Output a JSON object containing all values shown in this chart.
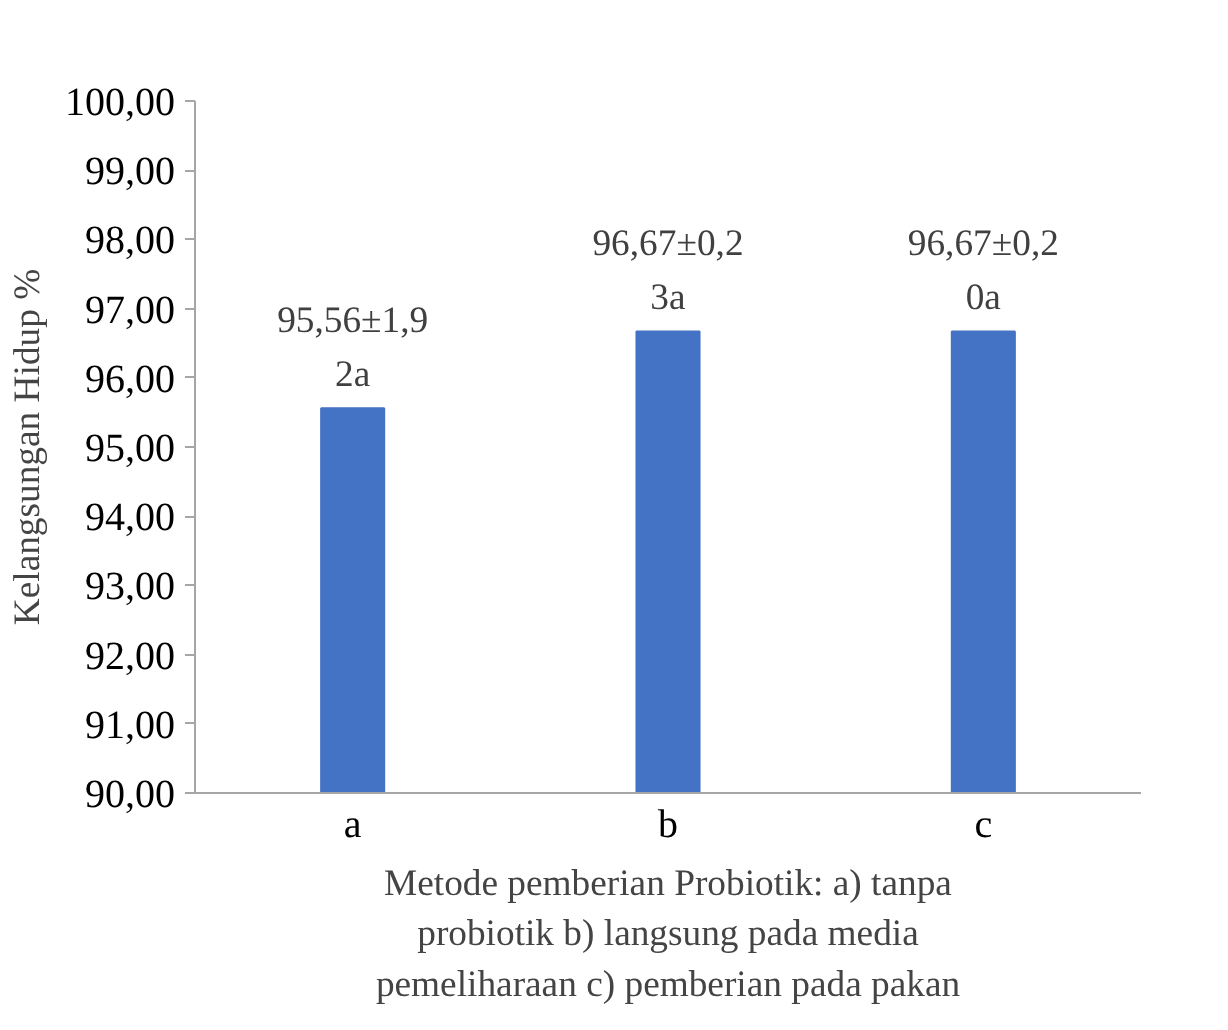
{
  "chart_data": {
    "type": "bar",
    "ylabel": "Kelangsungan Hidup %",
    "xlabel": "Metode pemberian Probiotik: a) tanpa\nprobiotik b) langsung pada media\npemeliharaan c) pemberian pada pakan",
    "categories": [
      "a",
      "b",
      "c"
    ],
    "values": [
      95.56,
      96.67,
      96.67
    ],
    "color": "#4472c4",
    "value_labels": [
      "95,56±1,9\n2a",
      "96,67±0,2\n3a",
      "96,67±0,2\n0a"
    ],
    "ylim": [
      90,
      100
    ],
    "yticks": [
      {
        "value": 90,
        "label": "90,00"
      },
      {
        "value": 91,
        "label": "91,00"
      },
      {
        "value": 92,
        "label": "92,00"
      },
      {
        "value": 93,
        "label": "93,00"
      },
      {
        "value": 94,
        "label": "94,00"
      },
      {
        "value": 95,
        "label": "95,00"
      },
      {
        "value": 96,
        "label": "96,00"
      },
      {
        "value": 97,
        "label": "97,00"
      },
      {
        "value": 98,
        "label": "98,00"
      },
      {
        "value": 99,
        "label": "99,00"
      },
      {
        "value": 100,
        "label": "100,00"
      }
    ],
    "grid": false
  }
}
